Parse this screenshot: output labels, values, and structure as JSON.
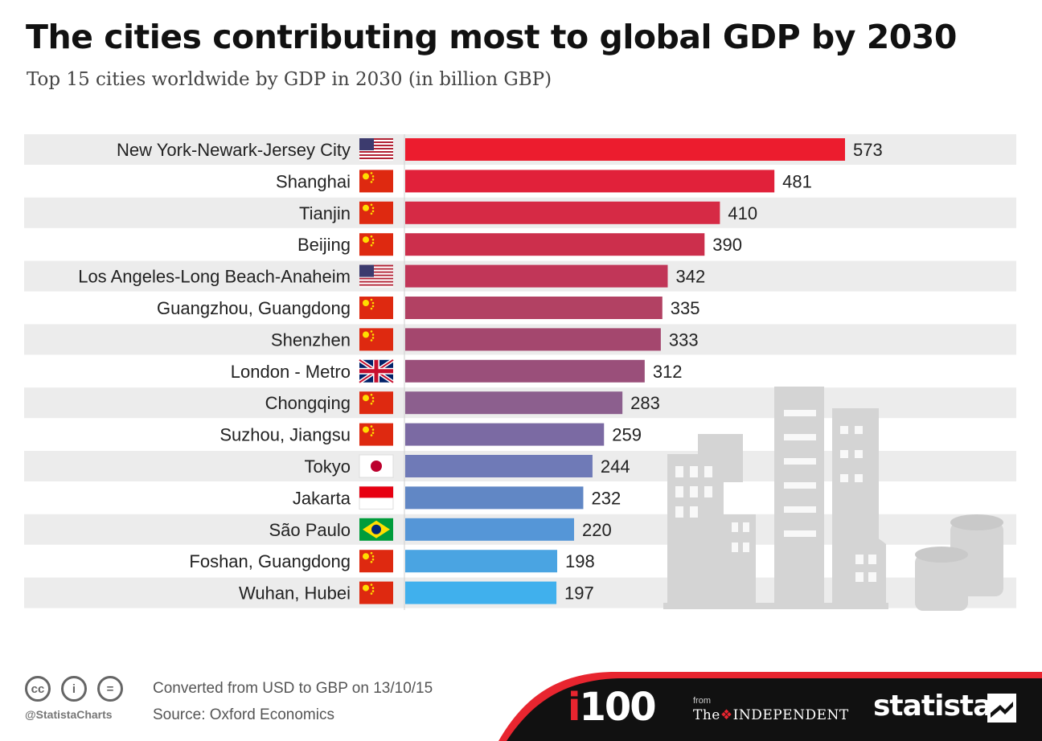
{
  "title": "The cities contributing most to global GDP by 2030",
  "subtitle": "Top 15 cities worldwide by GDP in 2030 (in billion GBP)",
  "chart_data": {
    "type": "bar",
    "orientation": "horizontal",
    "title": "The cities contributing most to global GDP by 2030",
    "subtitle": "Top 15 cities worldwide by GDP in 2030 (in billion GBP)",
    "categories": [
      "New York-Newark-Jersey City",
      "Shanghai",
      "Tianjin",
      "Beijing",
      "Los Angeles-Long Beach-Anaheim",
      "Guangzhou, Guangdong",
      "Shenzhen",
      "London - Metro",
      "Chongqing",
      "Suzhou, Jiangsu",
      "Tokyo",
      "Jakarta",
      "São Paulo",
      "Foshan, Guangdong",
      "Wuhan, Hubei"
    ],
    "values": [
      573,
      481,
      410,
      390,
      342,
      335,
      333,
      312,
      283,
      259,
      244,
      232,
      220,
      198,
      197
    ],
    "flags": [
      "us-flag",
      "cn-flag",
      "cn-flag",
      "cn-flag",
      "us-flag",
      "cn-flag",
      "cn-flag",
      "uk-flag",
      "cn-flag",
      "cn-flag",
      "jp-flag",
      "id-flag",
      "br-flag",
      "cn-flag",
      "cn-flag"
    ],
    "bar_colors": [
      "#ec1c2e",
      "#e1213a",
      "#d62a45",
      "#cc2f4c",
      "#c13658",
      "#b24163",
      "#a4476e",
      "#9a4f7a",
      "#8c5f8e",
      "#7b6aa3",
      "#6f7ab7",
      "#6187c5",
      "#5596d7",
      "#4aa4e2",
      "#40b0ed"
    ],
    "show_data_labels": true,
    "row_stripes": true,
    "xlim": [
      0,
      600
    ],
    "grid": false
  },
  "footer": {
    "cc_icons": [
      "cc-icon",
      "by-icon",
      "nd-icon"
    ],
    "cc_labels": [
      "cc",
      "i",
      "="
    ],
    "handle": "@StatistaCharts",
    "note": "Converted from USD to GBP on 13/10/15",
    "source": "Source: Oxford Economics",
    "logo_i100_i": "i",
    "logo_i100_num": "100",
    "logo_from": "from",
    "logo_independent_the": "The",
    "logo_independent_name": "INDEPENDENT",
    "logo_statista": "statista",
    "colors": {
      "dark": "#111111",
      "accent": "#e8252f"
    }
  }
}
